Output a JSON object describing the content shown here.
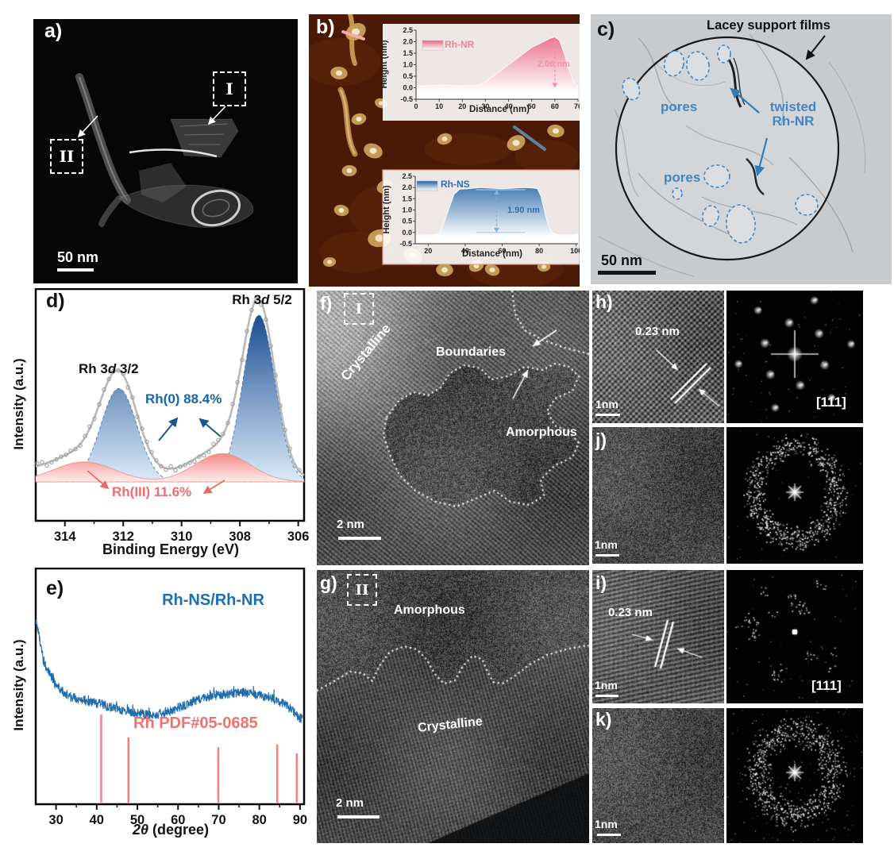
{
  "colors": {
    "xps_blue_dark": "#1c4e92",
    "xps_blue_light": "#dcebf8",
    "xps_blue_text": "#1566a8",
    "xps_red": "#f3807e",
    "xps_red_text": "#f26b6b",
    "envelope_gray": "#b9b9b9",
    "xrd_trace": "#1f6cac",
    "xrd_ref_stick": "#ef8383",
    "xrd_series_text": "#1a6fb5",
    "xrd_ref_text": "#ef7272",
    "afm_bg": "#4a1a07",
    "afm_particle": "#d8a75e",
    "nr_pink": "#e8637f",
    "ns_blue": "#1d5fa4",
    "pore_blue": "#3d87c5"
  },
  "panels": {
    "a": {
      "label": "a)",
      "roi_i": "I",
      "roi_ii": "II",
      "scalebar": "50 nm"
    },
    "b": {
      "label": "b)"
    },
    "c": {
      "label": "c)",
      "lacey": "Lacey support films",
      "pores_top": "pores",
      "pores_bottom": "pores",
      "twisted": "twisted Rh-NR",
      "scalebar": "50 nm"
    },
    "d": {
      "label": "d)",
      "peak52": {
        "pre": "Rh 3",
        "d": "d",
        "post": " 5/2"
      },
      "peak32": {
        "pre": "Rh 3",
        "d": "d",
        "post": " 3/2"
      },
      "rh0": "Rh(0) 88.4%",
      "rh3": "Rh(III) 11.6%",
      "xlabel": "Binding Energy (eV)",
      "ylabel": "Intensity (a.u.)"
    },
    "e": {
      "label": "e)",
      "series": "Rh-NS/Rh-NR",
      "reference": "Rh PDF#05-0685",
      "xlabel_italic": "2θ",
      "xlabel_rest": " (degree)",
      "ylabel": "Intensity (a.u.)"
    },
    "f": {
      "label": "f)",
      "roi": "I",
      "crystalline": "Crystalline",
      "boundaries": "Boundaries",
      "amorphous": "Amorphous",
      "scalebar": "2 nm"
    },
    "g": {
      "label": "g)",
      "roi": "II",
      "amorphous": "Amorphous",
      "crystalline": "Crystalline",
      "scalebar": "2 nm"
    },
    "h": {
      "label": "h)",
      "dspacing": "0.23 nm",
      "scalebar": "1nm",
      "zone": "[111]"
    },
    "i": {
      "label": "i)",
      "dspacing": "0.23 nm",
      "scalebar": "1nm",
      "zone": "[111]"
    },
    "j": {
      "label": "j)",
      "scalebar": "1nm"
    },
    "k": {
      "label": "k)",
      "scalebar": "1nm"
    }
  },
  "chart_data": [
    {
      "panel": "d",
      "type": "area",
      "xlabel": "Binding Energy (eV)",
      "ylabel": "Intensity (a.u.)",
      "x_range": [
        315,
        305.8
      ],
      "x_ticks": [
        314,
        312,
        310,
        308,
        306
      ],
      "x_minor_ticks": [
        315,
        313,
        311,
        309,
        307
      ],
      "x_reversed": true,
      "series": [
        {
          "name": "Rh(0)",
          "share": "88.4%",
          "peaks": [
            {
              "center": 307.35,
              "sigma": 0.55,
              "amp": 1.0
            },
            {
              "center": 312.15,
              "sigma": 0.62,
              "amp": 0.56
            }
          ]
        },
        {
          "name": "Rh(III)",
          "share": "11.6%",
          "peaks": [
            {
              "center": 308.6,
              "sigma": 0.95,
              "amp": 0.17
            },
            {
              "center": 313.35,
              "sigma": 1.05,
              "amp": 0.12
            }
          ]
        }
      ],
      "assignments": [
        "Rh 3d 5/2",
        "Rh 3d 3/2"
      ]
    },
    {
      "panel": "e",
      "type": "line",
      "xlabel": "2θ (degree)",
      "ylabel": "Intensity (a.u.)",
      "x_range": [
        25,
        91
      ],
      "x_ticks": [
        30,
        40,
        50,
        60,
        70,
        80,
        90
      ],
      "x_minor_ticks": [
        35,
        45,
        55,
        65,
        75,
        85
      ],
      "series_label": "Rh-NS/Rh-NR",
      "baseline": [
        [
          25,
          0.78
        ],
        [
          27,
          0.6
        ],
        [
          30,
          0.5
        ],
        [
          33,
          0.455
        ],
        [
          36,
          0.44
        ],
        [
          40,
          0.425
        ],
        [
          44,
          0.405
        ],
        [
          48,
          0.39
        ],
        [
          52,
          0.375
        ],
        [
          56,
          0.38
        ],
        [
          60,
          0.405
        ],
        [
          64,
          0.435
        ],
        [
          68,
          0.455
        ],
        [
          72,
          0.465
        ],
        [
          76,
          0.47
        ],
        [
          80,
          0.46
        ],
        [
          84,
          0.44
        ],
        [
          87,
          0.415
        ],
        [
          90,
          0.36
        ]
      ],
      "noise_amp": 0.02,
      "reference": {
        "label": "Rh PDF#05-0685",
        "peaks": [
          {
            "two_theta": 41.1,
            "rel_intensity": 1.0
          },
          {
            "two_theta": 47.8,
            "rel_intensity": 0.74
          },
          {
            "two_theta": 69.9,
            "rel_intensity": 0.63
          },
          {
            "two_theta": 84.4,
            "rel_intensity": 0.66
          },
          {
            "two_theta": 89.2,
            "rel_intensity": 0.56
          }
        ]
      }
    },
    {
      "panel": "b-inset-top",
      "type": "area",
      "legend": "Rh-NR",
      "annotation": "2.06 nm",
      "xlabel": "Distance (nm)",
      "ylabel": "Height (nm)",
      "x_range": [
        0,
        70
      ],
      "y_range": [
        -0.5,
        2.5
      ],
      "x_ticks": [
        0,
        10,
        20,
        30,
        40,
        50,
        60,
        70
      ],
      "y_ticks": [
        2.5,
        2.0,
        1.5,
        1.0,
        0.5,
        0.0,
        -0.5
      ],
      "points": [
        [
          0,
          0.05
        ],
        [
          6,
          0.1
        ],
        [
          12,
          0.12
        ],
        [
          18,
          0.08
        ],
        [
          24,
          0.1
        ],
        [
          28,
          0.14
        ],
        [
          32,
          0.4
        ],
        [
          38,
          0.85
        ],
        [
          44,
          1.3
        ],
        [
          50,
          1.75
        ],
        [
          55,
          2.0
        ],
        [
          58,
          2.15
        ],
        [
          60,
          2.2
        ],
        [
          62,
          2.05
        ],
        [
          64,
          1.5
        ],
        [
          66,
          0.8
        ],
        [
          68,
          0.3
        ],
        [
          69,
          0.15
        ],
        [
          70,
          0.1
        ]
      ],
      "annotation_x": 60,
      "annotation_height": 2.06
    },
    {
      "panel": "b-inset-bottom",
      "type": "area",
      "legend": "Rh-NS",
      "annotation": "1.90 nm",
      "xlabel": "Distance (nm)",
      "ylabel": "Height (nm)",
      "x_range": [
        13,
        101
      ],
      "y_range": [
        -0.5,
        2.5
      ],
      "x_ticks": [
        20,
        40,
        60,
        80,
        100
      ],
      "y_ticks": [
        2.5,
        2.0,
        1.5,
        1.0,
        0.5,
        0.0,
        -0.5
      ],
      "points": [
        [
          13,
          -0.1
        ],
        [
          18,
          -0.12
        ],
        [
          22,
          -0.1
        ],
        [
          26,
          -0.05
        ],
        [
          28,
          0.3
        ],
        [
          31,
          1.0
        ],
        [
          34,
          1.7
        ],
        [
          37,
          1.92
        ],
        [
          42,
          1.95
        ],
        [
          48,
          2.0
        ],
        [
          54,
          1.97
        ],
        [
          60,
          1.94
        ],
        [
          66,
          1.97
        ],
        [
          72,
          2.0
        ],
        [
          76,
          1.98
        ],
        [
          79,
          1.95
        ],
        [
          81,
          1.6
        ],
        [
          83,
          0.9
        ],
        [
          85,
          0.3
        ],
        [
          87,
          0.0
        ],
        [
          90,
          -0.1
        ],
        [
          94,
          -0.12
        ],
        [
          99,
          -0.1
        ],
        [
          101,
          -0.08
        ]
      ],
      "annotation_x": 57,
      "annotation_height": 1.9
    }
  ]
}
